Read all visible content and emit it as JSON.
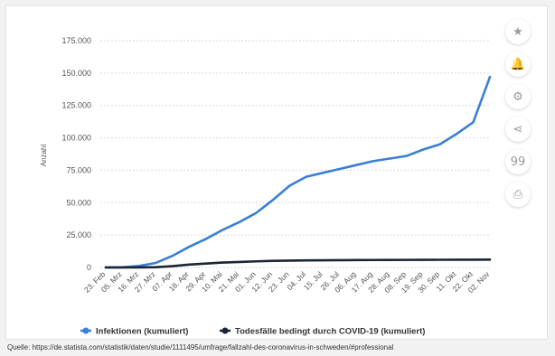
{
  "chart_data": {
    "type": "line",
    "title": "",
    "xlabel": "",
    "ylabel": "Anzahl",
    "ylim": [
      0,
      175000
    ],
    "y_ticks": [
      "175.000",
      "150.000",
      "125.000",
      "100.000",
      "75.000",
      "50.000",
      "25.000",
      "0"
    ],
    "y_tick_values": [
      175000,
      150000,
      125000,
      100000,
      75000,
      50000,
      25000,
      0
    ],
    "categories": [
      "23. Feb",
      "05. Mrz",
      "16. Mrz",
      "27. Mrz",
      "07. Apr",
      "18. Apr",
      "29. Apr",
      "10. Mai",
      "21. Mai",
      "01. Jun",
      "12. Jun",
      "23. Jun",
      "04. Jul",
      "15. Jul",
      "26. Jul",
      "06. Aug",
      "17. Aug",
      "28. Aug",
      "08. Sep",
      "19. Sep",
      "30. Sep",
      "11. Okt",
      "22. Okt",
      "02. Nov"
    ],
    "grid": true,
    "legend_placement": "bottom",
    "series": [
      {
        "name": "Infektionen (kumuliert)",
        "color": "#3a7fd5",
        "values": [
          0,
          100,
          1200,
          3500,
          9000,
          16000,
          22000,
          29000,
          35000,
          42000,
          52000,
          63000,
          70000,
          73000,
          76000,
          79000,
          82000,
          84000,
          86000,
          91000,
          95000,
          103000,
          112000,
          147000
        ]
      },
      {
        "name": "Todesfälle bedingt durch COVID-19 (kumuliert)",
        "color": "#1a2533",
        "values": [
          0,
          0,
          10,
          200,
          1000,
          2200,
          3000,
          3800,
          4200,
          4700,
          5100,
          5300,
          5450,
          5550,
          5620,
          5700,
          5760,
          5800,
          5840,
          5880,
          5920,
          5970,
          6000,
          6050
        ]
      }
    ]
  },
  "toolbar": {
    "icons": [
      "star-icon",
      "bell-icon",
      "gear-icon",
      "share-icon",
      "quote-icon",
      "print-icon"
    ],
    "glyphs": [
      "★",
      "🔔",
      "⚙",
      "⋖",
      "99",
      "⎙"
    ]
  },
  "source_text": "Quelle: https://de.statista.com/statistik/daten/studie/1111495/umfrage/fallzahl-des-coronavirus-in-schweden/#professional"
}
